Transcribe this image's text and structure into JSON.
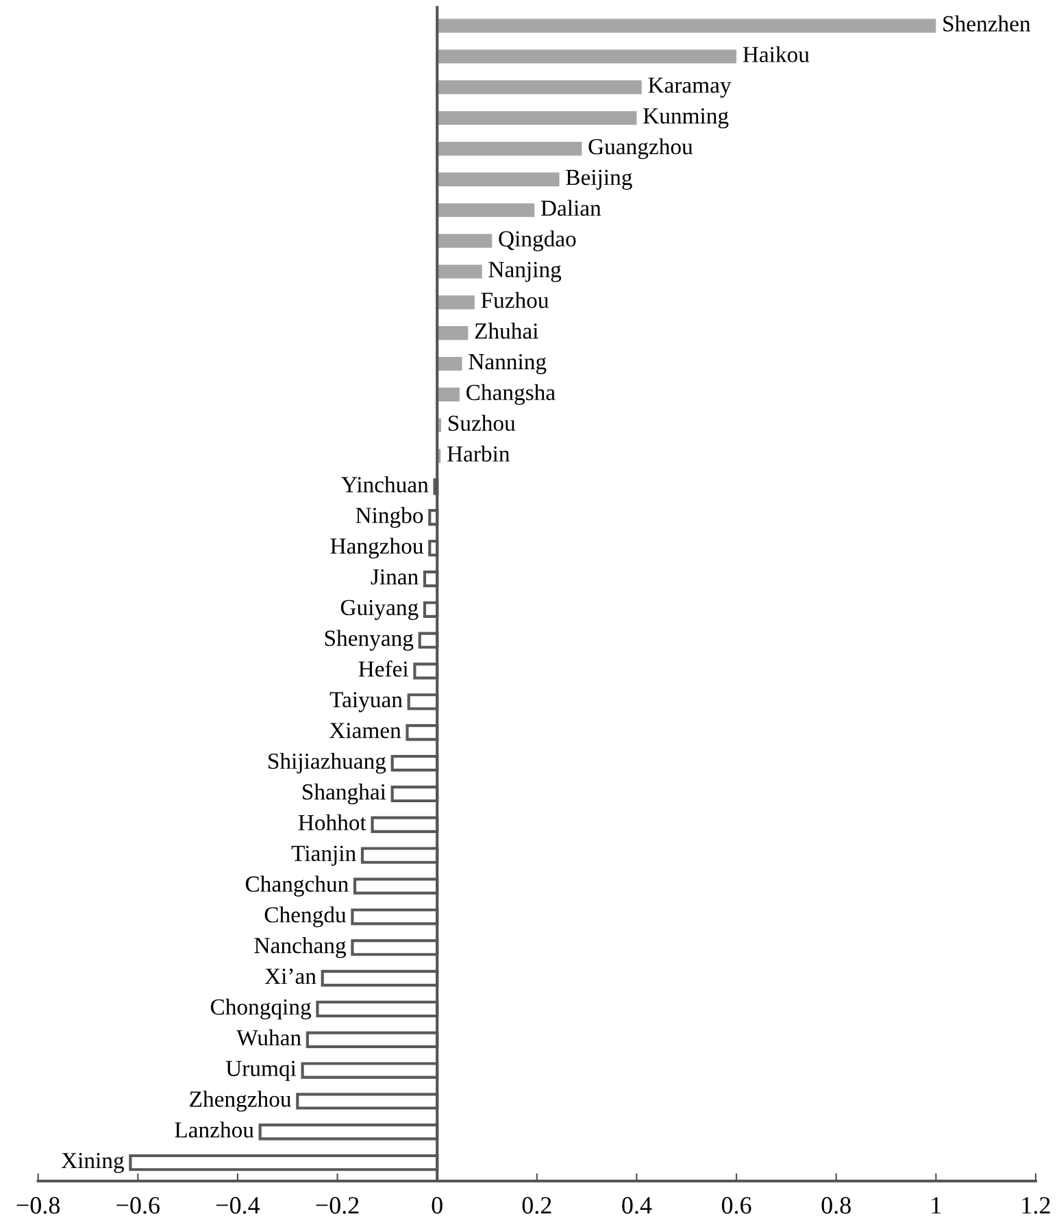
{
  "chart_data": {
    "type": "bar",
    "orientation": "horizontal",
    "categories": [
      "Shenzhen",
      "Haikou",
      "Karamay",
      "Kunming",
      "Guangzhou",
      "Beijing",
      "Dalian",
      "Qingdao",
      "Nanjing",
      "Fuzhou",
      "Zhuhai",
      "Nanning",
      "Changsha",
      "Suzhou",
      "Harbin",
      "Yinchuan",
      "Ningbo",
      "Hangzhou",
      "Jinan",
      "Guiyang",
      "Shenyang",
      "Hefei",
      "Taiyuan",
      "Xiamen",
      "Shijiazhuang",
      "Shanghai",
      "Hohhot",
      "Tianjin",
      "Changchun",
      "Chengdu",
      "Nanchang",
      "Xi’an",
      "Chongqing",
      "Wuhan",
      "Urumqi",
      "Zhengzhou",
      "Lanzhou",
      "Xining"
    ],
    "values": [
      1.0,
      0.6,
      0.41,
      0.4,
      0.29,
      0.245,
      0.195,
      0.11,
      0.09,
      0.075,
      0.062,
      0.05,
      0.045,
      0.008,
      0.007,
      -0.005,
      -0.015,
      -0.015,
      -0.025,
      -0.025,
      -0.035,
      -0.045,
      -0.057,
      -0.06,
      -0.09,
      -0.09,
      -0.13,
      -0.15,
      -0.165,
      -0.17,
      -0.17,
      -0.23,
      -0.24,
      -0.26,
      -0.27,
      -0.28,
      -0.355,
      -0.615
    ],
    "colors": [
      "#a6a6a6",
      "#a6a6a6",
      "#a6a6a6",
      "#a6a6a6",
      "#a6a6a6",
      "#a6a6a6",
      "#a6a6a6",
      "#a6a6a6",
      "#a6a6a6",
      "#a6a6a6",
      "#a6a6a6",
      "#a6a6a6",
      "#a6a6a6",
      "#a6a6a6",
      "#a6a6a6",
      "#595959",
      "#595959",
      "#595959",
      "#595959",
      "#595959",
      "#595959",
      "#595959",
      "#595959",
      "#595959",
      "#595959",
      "#595959",
      "#595959",
      "#595959",
      "#595959",
      "#595959",
      "#595959",
      "#595959",
      "#595959",
      "#595959",
      "#595959",
      "#595959",
      "#595959",
      "#595959"
    ],
    "xlim": [
      -0.8,
      1.2
    ],
    "xticks": [
      {
        "value": -0.8,
        "label": "−0.8"
      },
      {
        "value": -0.6,
        "label": "−0.6"
      },
      {
        "value": -0.4,
        "label": "−0.4"
      },
      {
        "value": -0.2,
        "label": "−0.2"
      },
      0,
      0.2,
      0.4,
      0.6,
      0.8,
      1,
      1.2
    ],
    "grid": false,
    "legend": false
  }
}
